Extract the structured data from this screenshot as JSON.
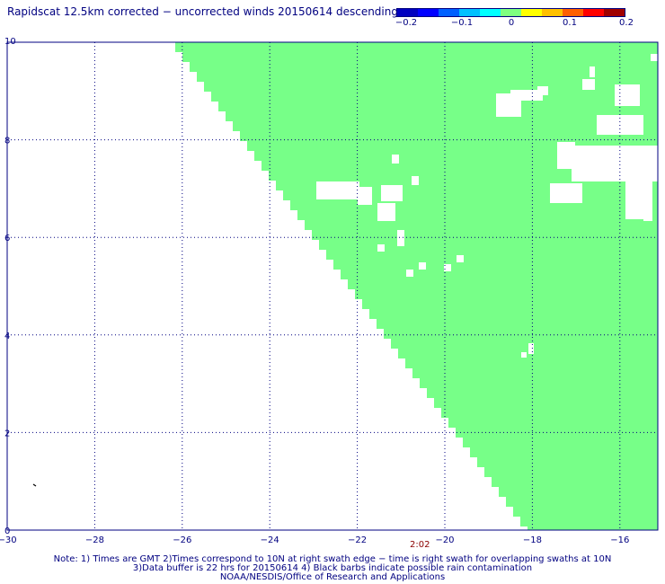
{
  "title": "Rapidscat 12.5km corrected − uncorrected winds 20150614 descending",
  "colorbar": {
    "colors": [
      "#0000c0",
      "#0000ff",
      "#0060ff",
      "#00c0ff",
      "#00ffff",
      "#7fff7f",
      "#ffff00",
      "#ffc000",
      "#ff6000",
      "#ff0000",
      "#a00000"
    ],
    "ticks": [
      {
        "label": "−0.2",
        "value": -0.2
      },
      {
        "label": "−0.1",
        "value": -0.1
      },
      {
        "label": "0",
        "value": 0
      },
      {
        "label": "0.1",
        "value": 0.1
      },
      {
        "label": "0.2",
        "value": 0.2
      }
    ]
  },
  "map": {
    "lon_range": [
      -30,
      -15
    ],
    "lat_range": [
      0,
      10
    ],
    "x_ticks": [
      {
        "label": "−30",
        "value": -30
      },
      {
        "label": "−28",
        "value": -28
      },
      {
        "label": "−26",
        "value": -26
      },
      {
        "label": "−24",
        "value": -24
      },
      {
        "label": "−22",
        "value": -22
      },
      {
        "label": "−20",
        "value": -20
      },
      {
        "label": "−18",
        "value": -18
      },
      {
        "label": "−16",
        "value": -16
      }
    ],
    "y_ticks": [
      {
        "label": "0",
        "value": 0
      },
      {
        "label": "2",
        "value": 2
      },
      {
        "label": "4",
        "value": 4
      },
      {
        "label": "6",
        "value": 6
      },
      {
        "label": "8",
        "value": 8
      },
      {
        "label": "10",
        "value": 10
      }
    ],
    "swath_color": "#77ff88",
    "grid_color": "#000080"
  },
  "time_label": "2:02",
  "notes": {
    "line1": "Note: 1) Times are GMT 2)Times correspond to 10N at right swath edge − time is right swath for overlapping swaths at 10N",
    "line2": "3)Data buffer is 22 hrs for 20150614 4) Black barbs indicate possible rain contamination",
    "line3": "NOAA/NESDIS/Office of Research and Applications"
  }
}
